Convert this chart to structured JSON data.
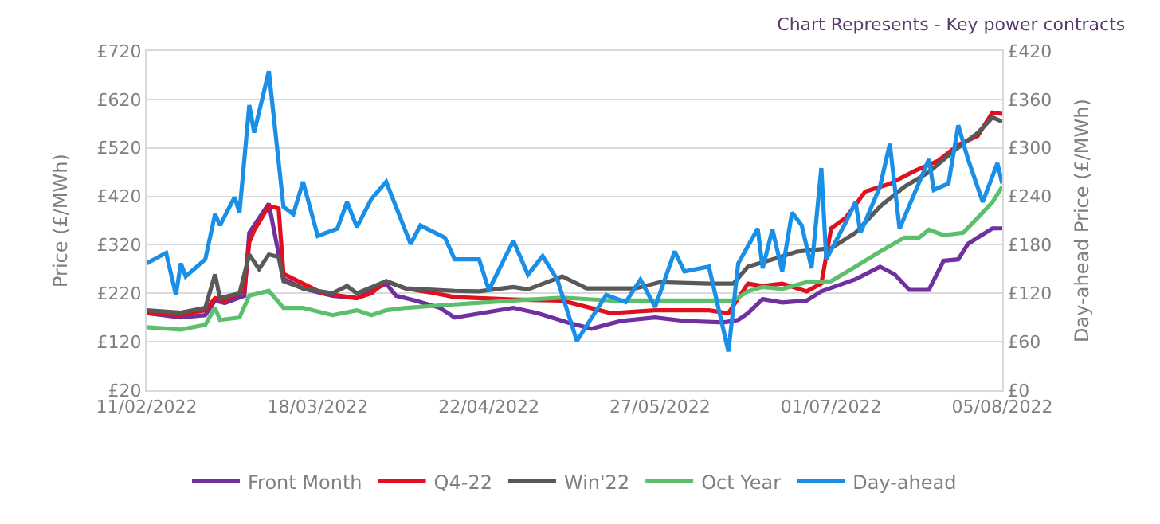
{
  "chart_data": {
    "type": "line",
    "title": "Chart Represents - Key power contracts",
    "ylabel": "Price (£/MWh)",
    "y2label": "Day-ahead Price (£/MWh)",
    "xlim": [
      "2022-02-11",
      "2022-08-05"
    ],
    "xticks": [
      {
        "value": "2022-02-11",
        "label": "11/02/2022"
      },
      {
        "value": "2022-03-18",
        "label": "18/03/2022"
      },
      {
        "value": "2022-04-22",
        "label": "22/04/2022"
      },
      {
        "value": "2022-05-27",
        "label": "27/05/2022"
      },
      {
        "value": "2022-07-01",
        "label": "01/07/2022"
      },
      {
        "value": "2022-08-05",
        "label": "05/08/2022"
      }
    ],
    "ylim": [
      20,
      720
    ],
    "yticks": [
      {
        "value": 20,
        "label": "£20"
      },
      {
        "value": 120,
        "label": "£120"
      },
      {
        "value": 220,
        "label": "£220"
      },
      {
        "value": 320,
        "label": "£320"
      },
      {
        "value": 420,
        "label": "£420"
      },
      {
        "value": 520,
        "label": "£520"
      },
      {
        "value": 620,
        "label": "£620"
      },
      {
        "value": 720,
        "label": "£720"
      }
    ],
    "y2lim": [
      0,
      420
    ],
    "y2ticks": [
      {
        "value": 0,
        "label": "£0"
      },
      {
        "value": 60,
        "label": "£60"
      },
      {
        "value": 120,
        "label": "£120"
      },
      {
        "value": 180,
        "label": "£180"
      },
      {
        "value": 240,
        "label": "£240"
      },
      {
        "value": 300,
        "label": "£300"
      },
      {
        "value": 360,
        "label": "£360"
      },
      {
        "value": 420,
        "label": "£420"
      }
    ],
    "grid": "y",
    "legend": "bottom",
    "marker": "none",
    "line_style": "solid",
    "series": [
      {
        "name": "Front Month",
        "color": "#7030a0",
        "x": [
          "2022-02-11",
          "2022-02-18",
          "2022-02-23",
          "2022-02-25",
          "2022-02-27",
          "2022-03-03",
          "2022-03-04",
          "2022-03-08",
          "2022-03-11",
          "2022-03-15",
          "2022-03-21",
          "2022-03-26",
          "2022-03-29",
          "2022-04-01",
          "2022-04-03",
          "2022-04-07",
          "2022-04-12",
          "2022-04-15",
          "2022-04-27",
          "2022-05-02",
          "2022-05-08",
          "2022-05-13",
          "2022-05-19",
          "2022-05-26",
          "2022-06-01",
          "2022-06-09",
          "2022-06-12",
          "2022-06-14",
          "2022-06-17",
          "2022-06-21",
          "2022-06-26",
          "2022-06-29",
          "2022-07-06",
          "2022-07-11",
          "2022-07-14",
          "2022-07-17",
          "2022-07-21",
          "2022-07-24",
          "2022-07-27",
          "2022-07-29",
          "2022-07-31",
          "2022-08-03",
          "2022-08-05"
        ],
        "values": [
          179,
          170,
          175,
          205,
          200,
          215,
          345,
          405,
          250,
          230,
          215,
          210,
          225,
          240,
          215,
          205,
          190,
          170,
          190,
          179,
          160,
          147,
          163,
          170,
          163,
          160,
          165,
          179,
          208,
          201,
          205,
          224,
          249,
          275,
          259,
          227,
          227,
          287,
          290,
          322,
          335,
          354,
          354
        ]
      },
      {
        "name": "Q4-22",
        "color": "#e0101e",
        "x": [
          "2022-02-11",
          "2022-02-18",
          "2022-02-23",
          "2022-02-25",
          "2022-02-27",
          "2022-03-03",
          "2022-03-04",
          "2022-03-05",
          "2022-03-08",
          "2022-03-10",
          "2022-03-11",
          "2022-03-15",
          "2022-03-19",
          "2022-03-26",
          "2022-03-29",
          "2022-04-01",
          "2022-04-05",
          "2022-04-10",
          "2022-04-15",
          "2022-04-27",
          "2022-05-07",
          "2022-05-17",
          "2022-05-26",
          "2022-06-06",
          "2022-06-10",
          "2022-06-14",
          "2022-06-17",
          "2022-06-21",
          "2022-06-26",
          "2022-06-29",
          "2022-07-01",
          "2022-07-04",
          "2022-07-08",
          "2022-07-13",
          "2022-07-18",
          "2022-07-23",
          "2022-07-27",
          "2022-07-31",
          "2022-08-03",
          "2022-08-05"
        ],
        "values": [
          180,
          175,
          185,
          210,
          205,
          225,
          325,
          350,
          400,
          395,
          260,
          240,
          220,
          210,
          220,
          245,
          230,
          222,
          212,
          207,
          205,
          179,
          185,
          185,
          179,
          240,
          235,
          240,
          224,
          240,
          354,
          376,
          430,
          446,
          472,
          494,
          526,
          545,
          593,
          590
        ]
      },
      {
        "name": "Win'22",
        "color": "#595959",
        "x": [
          "2022-02-11",
          "2022-02-18",
          "2022-02-23",
          "2022-02-25",
          "2022-02-26",
          "2022-03-02",
          "2022-03-04",
          "2022-03-06",
          "2022-03-08",
          "2022-03-10",
          "2022-03-11",
          "2022-03-15",
          "2022-03-21",
          "2022-03-24",
          "2022-03-26",
          "2022-04-01",
          "2022-04-05",
          "2022-04-15",
          "2022-04-20",
          "2022-04-27",
          "2022-04-30",
          "2022-05-07",
          "2022-05-12",
          "2022-05-22",
          "2022-05-27",
          "2022-06-06",
          "2022-06-11",
          "2022-06-14",
          "2022-06-19",
          "2022-06-24",
          "2022-07-01",
          "2022-07-06",
          "2022-07-11",
          "2022-07-16",
          "2022-07-21",
          "2022-07-26",
          "2022-07-31",
          "2022-08-03",
          "2022-08-05"
        ],
        "values": [
          185,
          180,
          190,
          259,
          210,
          220,
          300,
          270,
          300,
          295,
          245,
          230,
          220,
          235,
          220,
          245,
          230,
          225,
          224,
          233,
          228,
          255,
          230,
          230,
          243,
          240,
          240,
          275,
          290,
          306,
          313,
          345,
          399,
          440,
          470,
          513,
          551,
          583,
          574
        ]
      },
      {
        "name": "Oct Year",
        "color": "#5cbf6b",
        "x": [
          "2022-02-11",
          "2022-02-18",
          "2022-02-23",
          "2022-02-25",
          "2022-02-26",
          "2022-03-02",
          "2022-03-04",
          "2022-03-08",
          "2022-03-11",
          "2022-03-15",
          "2022-03-21",
          "2022-03-26",
          "2022-03-29",
          "2022-04-01",
          "2022-04-05",
          "2022-04-12",
          "2022-04-15",
          "2022-04-27",
          "2022-05-07",
          "2022-05-17",
          "2022-05-27",
          "2022-06-06",
          "2022-06-11",
          "2022-06-14",
          "2022-06-17",
          "2022-06-21",
          "2022-06-26",
          "2022-07-01",
          "2022-07-06",
          "2022-07-11",
          "2022-07-16",
          "2022-07-19",
          "2022-07-21",
          "2022-07-24",
          "2022-07-28",
          "2022-07-31",
          "2022-08-03",
          "2022-08-05"
        ],
        "values": [
          150,
          145,
          155,
          190,
          165,
          170,
          215,
          225,
          190,
          190,
          175,
          185,
          175,
          185,
          190,
          195,
          197,
          205,
          211,
          205,
          205,
          205,
          205,
          224,
          233,
          229,
          243,
          245,
          275,
          306,
          335,
          335,
          351,
          340,
          345,
          376,
          408,
          440
        ]
      },
      {
        "name": "Day-ahead",
        "color": "#1a8fe8",
        "axis": "y2",
        "x": [
          "2022-02-11",
          "2022-02-15",
          "2022-02-17",
          "2022-02-18",
          "2022-02-19",
          "2022-02-23",
          "2022-02-25",
          "2022-02-26",
          "2022-03-01",
          "2022-03-02",
          "2022-03-04",
          "2022-03-05",
          "2022-03-08",
          "2022-03-11",
          "2022-03-13",
          "2022-03-15",
          "2022-03-18",
          "2022-03-22",
          "2022-03-24",
          "2022-03-26",
          "2022-03-29",
          "2022-04-01",
          "2022-04-06",
          "2022-04-08",
          "2022-04-13",
          "2022-04-15",
          "2022-04-20",
          "2022-04-22",
          "2022-04-27",
          "2022-04-30",
          "2022-05-03",
          "2022-05-06",
          "2022-05-10",
          "2022-05-16",
          "2022-05-20",
          "2022-05-23",
          "2022-05-26",
          "2022-05-30",
          "2022-06-01",
          "2022-06-06",
          "2022-06-10",
          "2022-06-12",
          "2022-06-16",
          "2022-06-17",
          "2022-06-19",
          "2022-06-21",
          "2022-06-23",
          "2022-06-25",
          "2022-06-27",
          "2022-06-29",
          "2022-06-30",
          "2022-07-04",
          "2022-07-06",
          "2022-07-07",
          "2022-07-11",
          "2022-07-13",
          "2022-07-15",
          "2022-07-21",
          "2022-07-22",
          "2022-07-25",
          "2022-07-27",
          "2022-07-29",
          "2022-08-01",
          "2022-08-04",
          "2022-08-05"
        ],
        "values": [
          157,
          170,
          118,
          157,
          141,
          162,
          218,
          204,
          239,
          220,
          353,
          319,
          395,
          227,
          218,
          258,
          191,
          200,
          233,
          202,
          237,
          258,
          181,
          204,
          189,
          162,
          162,
          124,
          185,
          143,
          166,
          137,
          61,
          118,
          109,
          137,
          103,
          172,
          147,
          153,
          48,
          157,
          200,
          151,
          199,
          147,
          220,
          204,
          151,
          275,
          162,
          208,
          233,
          195,
          252,
          305,
          200,
          286,
          248,
          256,
          328,
          286,
          233,
          281,
          256
        ]
      }
    ]
  }
}
